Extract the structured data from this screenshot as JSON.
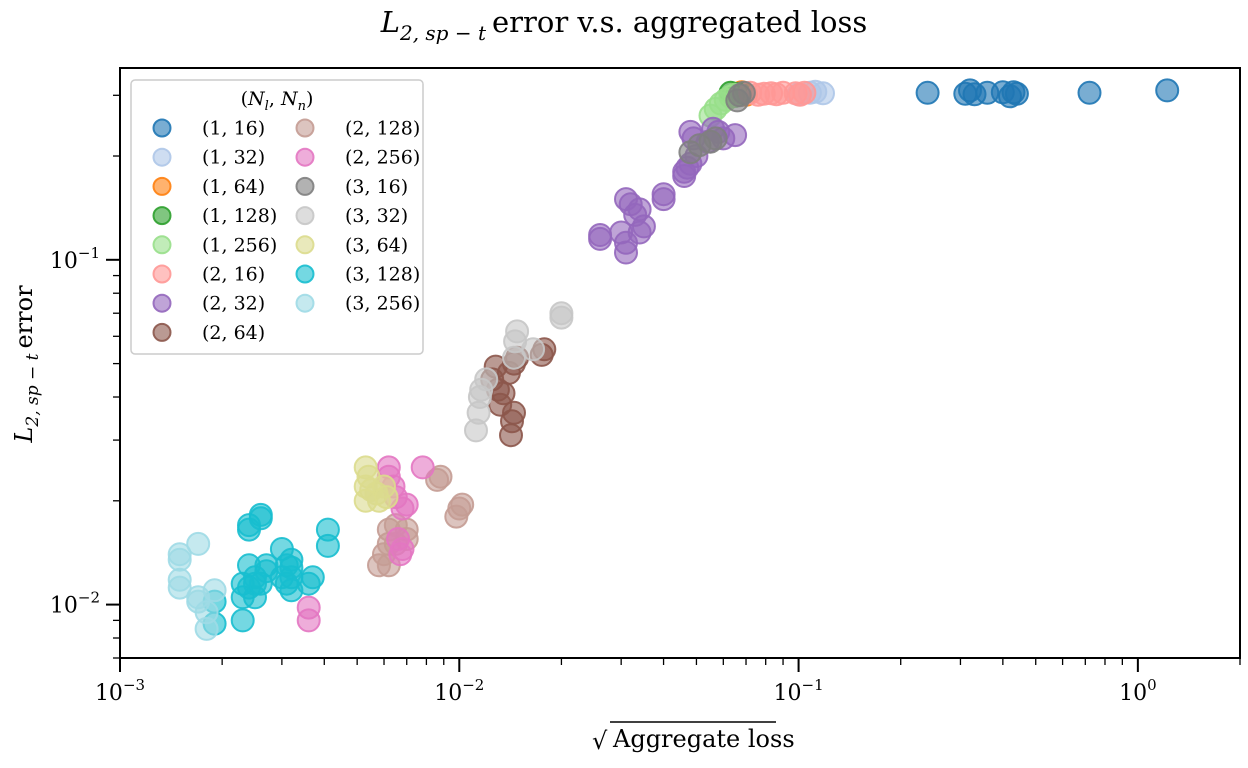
{
  "chart_data": {
    "type": "scatter",
    "title": "L_{2, sp−t} error v.s. aggregated loss",
    "title_parts": {
      "main": "L",
      "subscript": "2, sp − t",
      "rest": "error v.s. aggregated loss"
    },
    "xlabel": "√Aggregate loss",
    "xlabel_parts": {
      "radical": "√",
      "text": "Aggregate loss"
    },
    "ylabel": "L_{2, sp−t} error",
    "ylabel_parts": {
      "main": "L",
      "subscript": "2, sp − t",
      "rest": "error"
    },
    "x_scale": "log",
    "y_scale": "log",
    "xlim": [
      0.001,
      2.0
    ],
    "ylim": [
      0.007,
      0.36
    ],
    "x_ticks": [
      {
        "value": 0.001,
        "base": "10",
        "exp": "−3"
      },
      {
        "value": 0.01,
        "base": "10",
        "exp": "−2"
      },
      {
        "value": 0.1,
        "base": "10",
        "exp": "−1"
      },
      {
        "value": 1,
        "base": "10",
        "exp": "0"
      }
    ],
    "y_ticks": [
      {
        "value": 0.01,
        "base": "10",
        "exp": "−2"
      },
      {
        "value": 0.1,
        "base": "10",
        "exp": "−1"
      }
    ],
    "grid": false,
    "legend": {
      "title": "(N_l, N_n)",
      "title_parts": [
        "(",
        "N",
        "l",
        ", ",
        "N",
        "n",
        ")"
      ],
      "placement": "top-left",
      "columns": 2
    },
    "series": [
      {
        "name": "(1, 16)",
        "color": "#1f77b4",
        "points": [
          [
            0.24,
            0.305
          ],
          [
            0.31,
            0.303
          ],
          [
            0.32,
            0.31
          ],
          [
            0.33,
            0.302
          ],
          [
            0.36,
            0.305
          ],
          [
            0.4,
            0.306
          ],
          [
            0.42,
            0.298
          ],
          [
            0.43,
            0.306
          ],
          [
            0.44,
            0.303
          ],
          [
            0.72,
            0.305
          ],
          [
            1.22,
            0.31
          ]
        ]
      },
      {
        "name": "(1, 32)",
        "color": "#aec7e8",
        "points": [
          [
            0.1,
            0.302
          ],
          [
            0.108,
            0.305
          ],
          [
            0.112,
            0.307
          ],
          [
            0.118,
            0.304
          ]
        ]
      },
      {
        "name": "(1, 64)",
        "color": "#ff7f0e",
        "points": [
          [
            0.066,
            0.303
          ],
          [
            0.068,
            0.306
          ],
          [
            0.07,
            0.301
          ]
        ]
      },
      {
        "name": "(1, 128)",
        "color": "#2ca02c",
        "points": [
          [
            0.063,
            0.305
          ],
          [
            0.065,
            0.299
          ],
          [
            0.067,
            0.303
          ]
        ]
      },
      {
        "name": "(1, 256)",
        "color": "#98df8a",
        "points": [
          [
            0.055,
            0.262
          ],
          [
            0.057,
            0.274
          ],
          [
            0.059,
            0.284
          ],
          [
            0.061,
            0.291
          ],
          [
            0.063,
            0.297
          ],
          [
            0.065,
            0.301
          ]
        ]
      },
      {
        "name": "(2, 16)",
        "color": "#ff9896",
        "points": [
          [
            0.072,
            0.305
          ],
          [
            0.076,
            0.301
          ],
          [
            0.079,
            0.303
          ],
          [
            0.083,
            0.304
          ],
          [
            0.086,
            0.302
          ],
          [
            0.09,
            0.305
          ],
          [
            0.098,
            0.304
          ],
          [
            0.101,
            0.301
          ],
          [
            0.104,
            0.305
          ]
        ]
      },
      {
        "name": "(2, 32)",
        "color": "#9467bd",
        "points": [
          [
            0.026,
            0.118
          ],
          [
            0.026,
            0.115
          ],
          [
            0.03,
            0.12
          ],
          [
            0.031,
            0.105
          ],
          [
            0.031,
            0.112
          ],
          [
            0.031,
            0.15
          ],
          [
            0.032,
            0.145
          ],
          [
            0.033,
            0.135
          ],
          [
            0.034,
            0.14
          ],
          [
            0.034,
            0.12
          ],
          [
            0.035,
            0.125
          ],
          [
            0.04,
            0.155
          ],
          [
            0.04,
            0.15
          ],
          [
            0.046,
            0.175
          ],
          [
            0.046,
            0.18
          ],
          [
            0.047,
            0.185
          ],
          [
            0.048,
            0.19
          ],
          [
            0.048,
            0.235
          ],
          [
            0.049,
            0.225
          ],
          [
            0.05,
            0.2
          ],
          [
            0.054,
            0.22
          ],
          [
            0.056,
            0.24
          ],
          [
            0.058,
            0.235
          ],
          [
            0.06,
            0.225
          ],
          [
            0.065,
            0.23
          ]
        ]
      },
      {
        "name": "(2, 64)",
        "color": "#8c564b",
        "points": [
          [
            0.0125,
            0.045
          ],
          [
            0.0128,
            0.049
          ],
          [
            0.013,
            0.042
          ],
          [
            0.0132,
            0.038
          ],
          [
            0.0135,
            0.041
          ],
          [
            0.014,
            0.047
          ],
          [
            0.0142,
            0.031
          ],
          [
            0.0143,
            0.034
          ],
          [
            0.0145,
            0.036
          ],
          [
            0.0145,
            0.05
          ],
          [
            0.0148,
            0.052
          ],
          [
            0.0175,
            0.053
          ],
          [
            0.0178,
            0.055
          ]
        ]
      },
      {
        "name": "(2, 128)",
        "color": "#c49c94",
        "points": [
          [
            0.0058,
            0.013
          ],
          [
            0.006,
            0.014
          ],
          [
            0.0062,
            0.013
          ],
          [
            0.0062,
            0.015
          ],
          [
            0.0062,
            0.0165
          ],
          [
            0.0065,
            0.017
          ],
          [
            0.0065,
            0.015
          ],
          [
            0.007,
            0.0165
          ],
          [
            0.007,
            0.0155
          ],
          [
            0.0086,
            0.023
          ],
          [
            0.0088,
            0.0235
          ],
          [
            0.0098,
            0.018
          ],
          [
            0.01,
            0.019
          ],
          [
            0.0102,
            0.0195
          ]
        ]
      },
      {
        "name": "(2, 256)",
        "color": "#e377c2",
        "points": [
          [
            0.0036,
            0.0098
          ],
          [
            0.0036,
            0.009
          ],
          [
            0.0062,
            0.0235
          ],
          [
            0.0062,
            0.025
          ],
          [
            0.0064,
            0.022
          ],
          [
            0.0065,
            0.0205
          ],
          [
            0.0066,
            0.0155
          ],
          [
            0.0067,
            0.014
          ],
          [
            0.0068,
            0.0145
          ],
          [
            0.0068,
            0.019
          ],
          [
            0.007,
            0.0195
          ],
          [
            0.0078,
            0.025
          ]
        ]
      },
      {
        "name": "(3, 16)",
        "color": "#7f7f7f",
        "points": [
          [
            0.048,
            0.205
          ],
          [
            0.051,
            0.215
          ],
          [
            0.055,
            0.22
          ],
          [
            0.057,
            0.225
          ],
          [
            0.066,
            0.29
          ],
          [
            0.067,
            0.3
          ],
          [
            0.069,
            0.305
          ]
        ]
      },
      {
        "name": "(3, 32)",
        "color": "#c7c7c7",
        "points": [
          [
            0.0112,
            0.032
          ],
          [
            0.0114,
            0.036
          ],
          [
            0.0115,
            0.04
          ],
          [
            0.0116,
            0.042
          ],
          [
            0.012,
            0.045
          ],
          [
            0.0145,
            0.052
          ],
          [
            0.0146,
            0.058
          ],
          [
            0.0148,
            0.062
          ],
          [
            0.0165,
            0.055
          ],
          [
            0.02,
            0.068
          ],
          [
            0.02,
            0.07
          ]
        ]
      },
      {
        "name": "(3, 64)",
        "color": "#dbdb8d",
        "points": [
          [
            0.0053,
            0.025
          ],
          [
            0.0054,
            0.0235
          ],
          [
            0.0053,
            0.022
          ],
          [
            0.0055,
            0.0215
          ],
          [
            0.0057,
            0.021
          ],
          [
            0.0058,
            0.02
          ],
          [
            0.0053,
            0.02
          ],
          [
            0.006,
            0.022
          ],
          [
            0.0061,
            0.0205
          ]
        ]
      },
      {
        "name": "(3, 128)",
        "color": "#17becf",
        "points": [
          [
            0.0019,
            0.0102
          ],
          [
            0.0019,
            0.0088
          ],
          [
            0.0023,
            0.009
          ],
          [
            0.0023,
            0.0105
          ],
          [
            0.0023,
            0.0115
          ],
          [
            0.0024,
            0.0112
          ],
          [
            0.0024,
            0.0165
          ],
          [
            0.0024,
            0.017
          ],
          [
            0.0024,
            0.013
          ],
          [
            0.0025,
            0.0105
          ],
          [
            0.0025,
            0.0115
          ],
          [
            0.0025,
            0.012
          ],
          [
            0.0026,
            0.0115
          ],
          [
            0.0026,
            0.0182
          ],
          [
            0.0026,
            0.0178
          ],
          [
            0.0027,
            0.0125
          ],
          [
            0.0027,
            0.013
          ],
          [
            0.003,
            0.0145
          ],
          [
            0.003,
            0.012
          ],
          [
            0.0031,
            0.0115
          ],
          [
            0.0031,
            0.013
          ],
          [
            0.0032,
            0.012
          ],
          [
            0.0032,
            0.0128
          ],
          [
            0.0032,
            0.0135
          ],
          [
            0.0032,
            0.011
          ],
          [
            0.0036,
            0.0115
          ],
          [
            0.0037,
            0.012
          ],
          [
            0.0041,
            0.0165
          ],
          [
            0.0041,
            0.0148
          ]
        ]
      },
      {
        "name": "(3, 256)",
        "color": "#9edae5",
        "points": [
          [
            0.0015,
            0.0112
          ],
          [
            0.0015,
            0.0118
          ],
          [
            0.0015,
            0.0135
          ],
          [
            0.0015,
            0.014
          ],
          [
            0.0017,
            0.0102
          ],
          [
            0.0017,
            0.0105
          ],
          [
            0.0017,
            0.015
          ],
          [
            0.0018,
            0.0085
          ],
          [
            0.0018,
            0.0095
          ],
          [
            0.0019,
            0.011
          ]
        ]
      }
    ]
  }
}
